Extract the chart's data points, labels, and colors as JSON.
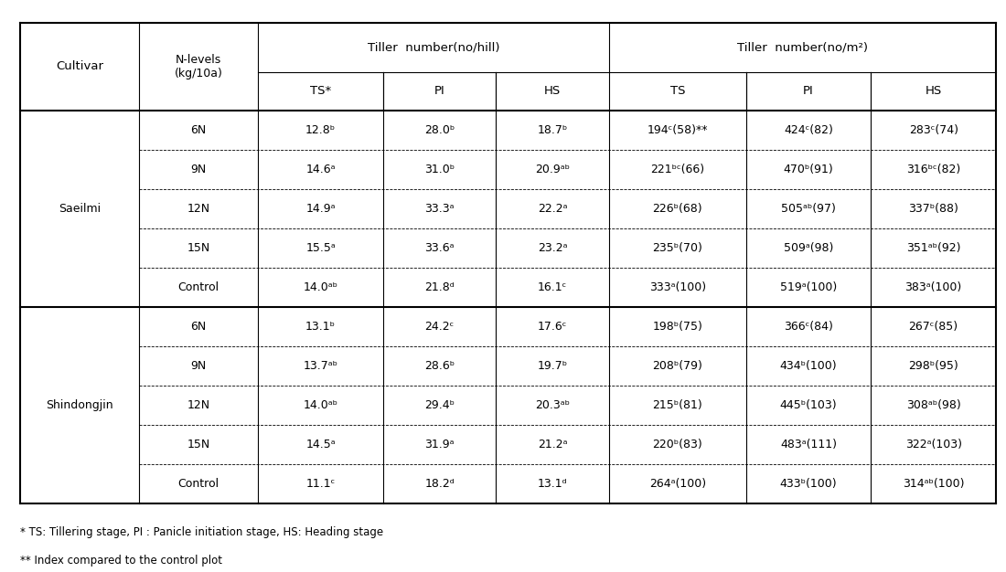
{
  "col_headers_row1": [
    "Cultivar",
    "N-levels\n(kg/10a)",
    "Tiller  number(no/hill)",
    "",
    "",
    "Tiller  number(no/m²)",
    "",
    ""
  ],
  "col_headers_row2": [
    "",
    "",
    "TS*",
    "PI",
    "HS",
    "TS",
    "PI",
    "HS"
  ],
  "col_spans_row1": [
    1,
    1,
    3,
    3
  ],
  "cultivars": [
    "Saeilmi",
    "Shindongjin"
  ],
  "n_levels": [
    "6N",
    "9N",
    "12N",
    "15N",
    "Control"
  ],
  "data": {
    "Saeilmi": {
      "6N": [
        "12.8ᵇ",
        "28.0ᵇ",
        "18.7ᵇ",
        "194ᶜ(58)**",
        "424ᶜ(82)",
        "283ᶜ(74)"
      ],
      "9N": [
        "14.6ᵃ",
        "31.0ᵇ",
        "20.9ᵃᵇ",
        "221ᵇᶜ(66)",
        "470ᵇ(91)",
        "316ᵇᶜ(82)"
      ],
      "12N": [
        "14.9ᵃ",
        "33.3ᵃ",
        "22.2ᵃ",
        "226ᵇ(68)",
        "505ᵃᵇ(97)",
        "337ᵇ(88)"
      ],
      "15N": [
        "15.5ᵃ",
        "33.6ᵃ",
        "23.2ᵃ",
        "235ᵇ(70)",
        "509ᵃ(98)",
        "351ᵃᵇ(92)"
      ],
      "Control": [
        "14.0ᵃᵇ",
        "21.8ᵈ",
        "16.1ᶜ",
        "333ᵃ(100)",
        "519ᵃ(100)",
        "383ᵃ(100)"
      ]
    },
    "Shindongjin": {
      "6N": [
        "13.1ᵇ",
        "24.2ᶜ",
        "17.6ᶜ",
        "198ᵇ(75)",
        "366ᶜ(84)",
        "267ᶜ(85)"
      ],
      "9N": [
        "13.7ᵃᵇ",
        "28.6ᵇ",
        "19.7ᵇ",
        "208ᵇ(79)",
        "434ᵇ(100)",
        "298ᵇ(95)"
      ],
      "12N": [
        "14.0ᵃᵇ",
        "29.4ᵇ",
        "20.3ᵃᵇ",
        "215ᵇ(81)",
        "445ᵇ(103)",
        "308ᵃᵇ(98)"
      ],
      "15N": [
        "14.5ᵃ",
        "31.9ᵃ",
        "21.2ᵃ",
        "220ᵇ(83)",
        "483ᵃ(111)",
        "322ᵃ(103)"
      ],
      "Control": [
        "11.1ᶜ",
        "18.2ᵈ",
        "13.1ᵈ",
        "264ᵃ(100)",
        "433ᵇ(100)",
        "314ᵃᵇ(100)"
      ]
    }
  },
  "footnote1": "* TS: Tillering stage, PI : Panicle initiation stage, HS: Heading stage",
  "footnote2": "** Index compared to the control plot",
  "bg_color": "#ffffff",
  "line_color": "#000000",
  "text_color": "#000000"
}
